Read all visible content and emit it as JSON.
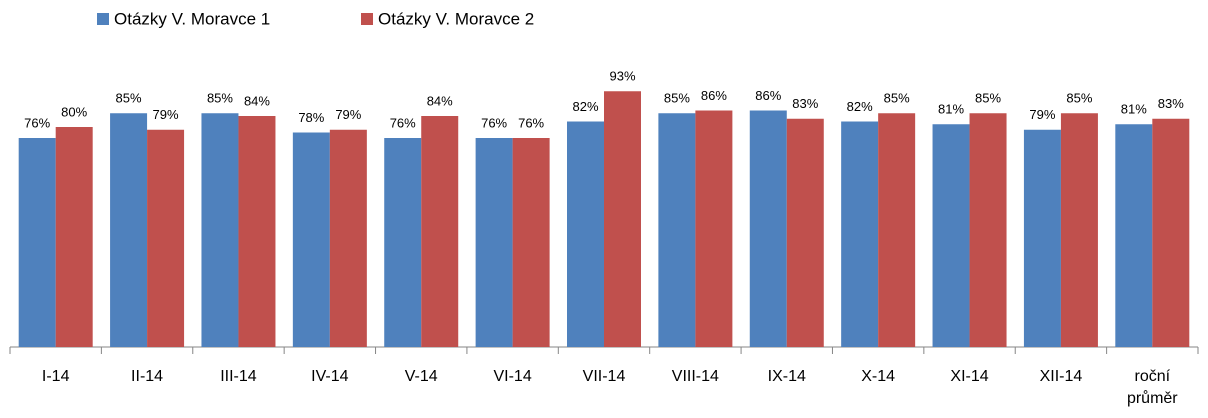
{
  "chart_data": {
    "type": "bar",
    "categories": [
      "I-14",
      "II-14",
      "III-14",
      "IV-14",
      "V-14",
      "VI-14",
      "VII-14",
      "VIII-14",
      "IX-14",
      "X-14",
      "XI-14",
      "XII-14",
      "roční průměr"
    ],
    "series": [
      {
        "name": "Otázky V. Moravce 1",
        "color": "#4f81bd",
        "values": [
          76,
          85,
          85,
          78,
          76,
          76,
          82,
          85,
          86,
          82,
          81,
          79,
          81
        ],
        "value_labels": [
          "76%",
          "85%",
          "85%",
          "78%",
          "76%",
          "76%",
          "82%",
          "85%",
          "86%",
          "82%",
          "81%",
          "79%",
          "81%"
        ]
      },
      {
        "name": "Otázky V. Moravce 2",
        "color": "#c0504d",
        "values": [
          80,
          79,
          84,
          79,
          84,
          76,
          93,
          86,
          83,
          85,
          85,
          85,
          83
        ],
        "value_labels": [
          "80%",
          "79%",
          "84%",
          "79%",
          "84%",
          "76%",
          "93%",
          "86%",
          "83%",
          "85%",
          "85%",
          "85%",
          "83%"
        ]
      }
    ],
    "ylim": [
      0,
      100
    ]
  }
}
